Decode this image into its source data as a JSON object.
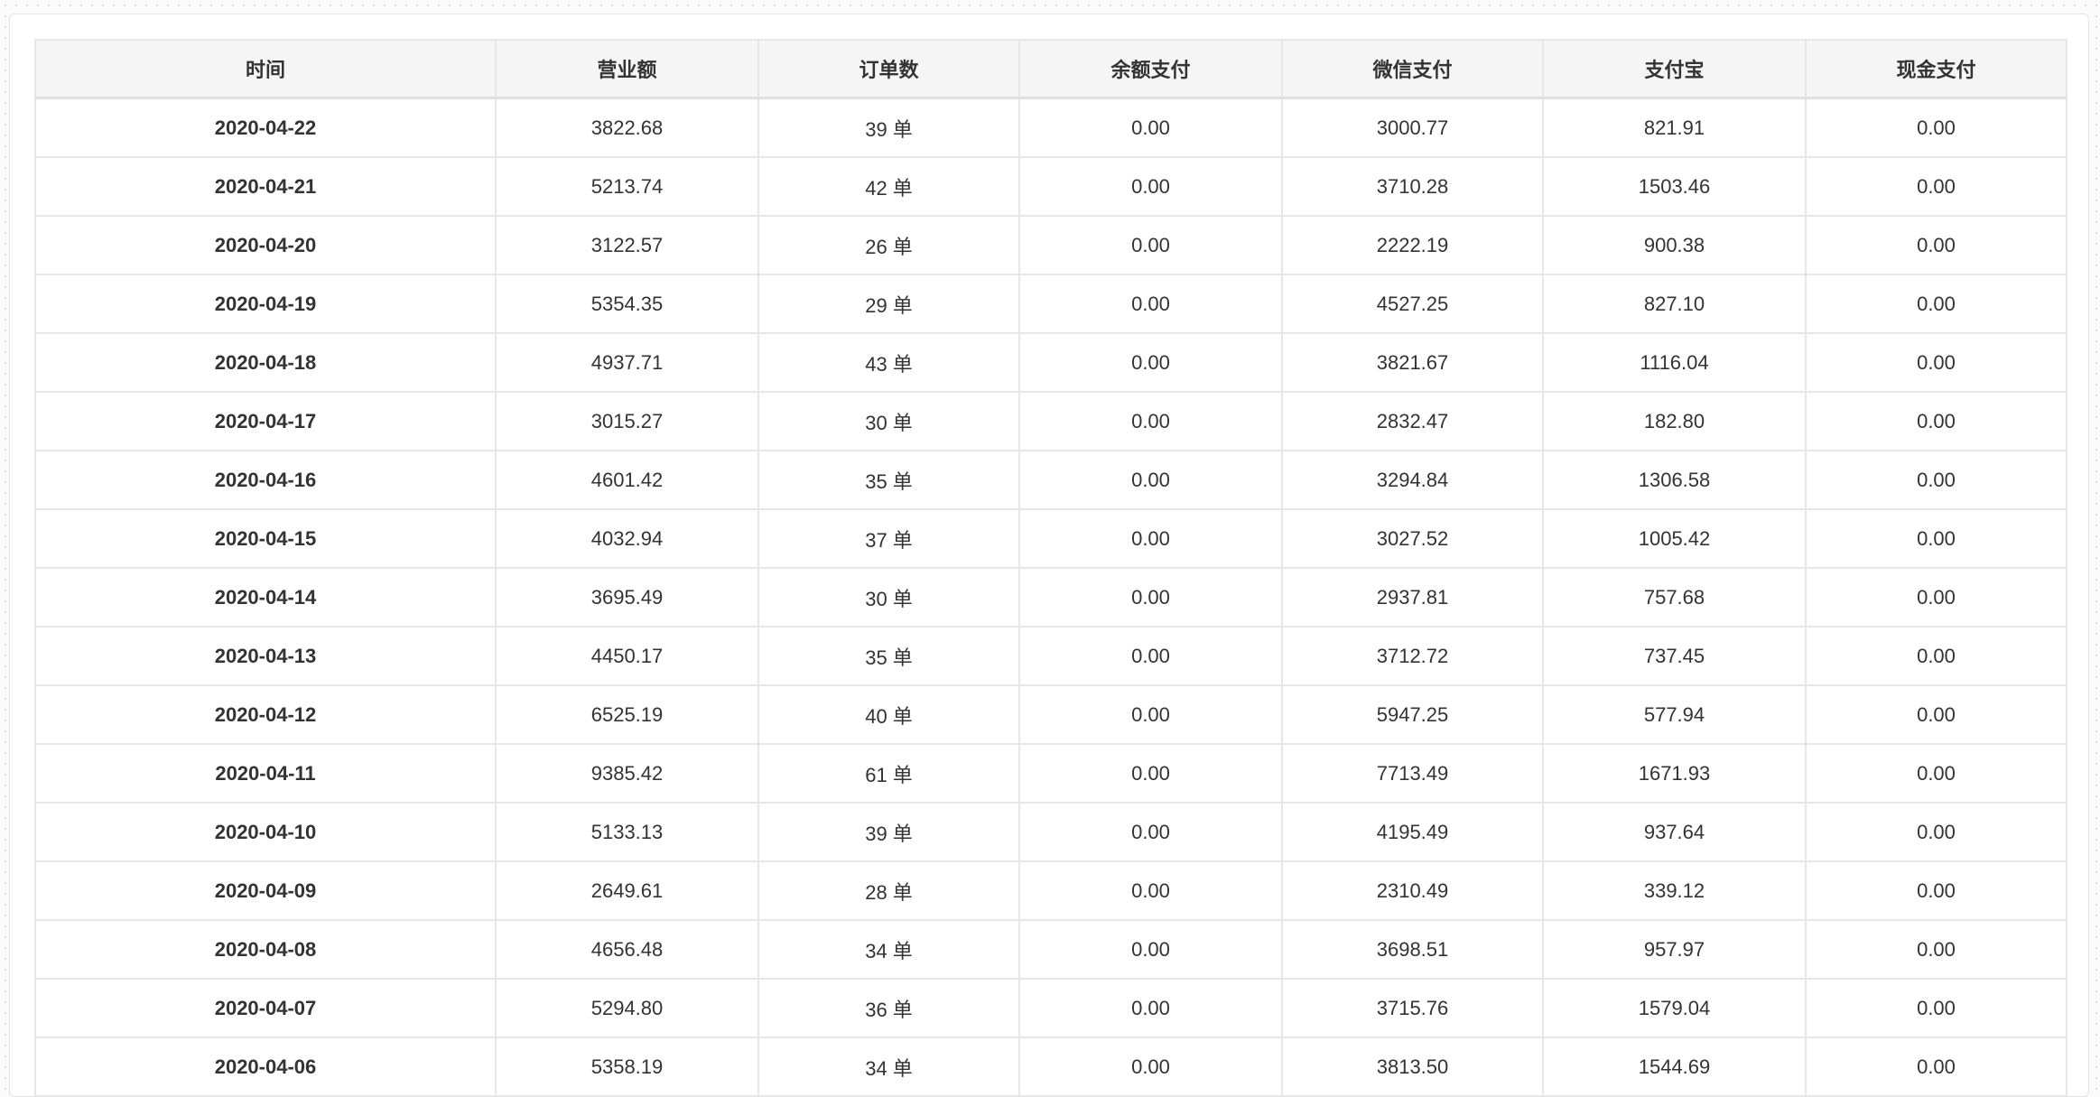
{
  "table": {
    "headers": [
      "时间",
      "营业额",
      "订单数",
      "余额支付",
      "微信支付",
      "支付宝",
      "现金支付"
    ],
    "rows": [
      [
        "2020-04-22",
        "3822.68",
        "39 单",
        "0.00",
        "3000.77",
        "821.91",
        "0.00"
      ],
      [
        "2020-04-21",
        "5213.74",
        "42 单",
        "0.00",
        "3710.28",
        "1503.46",
        "0.00"
      ],
      [
        "2020-04-20",
        "3122.57",
        "26 单",
        "0.00",
        "2222.19",
        "900.38",
        "0.00"
      ],
      [
        "2020-04-19",
        "5354.35",
        "29 单",
        "0.00",
        "4527.25",
        "827.10",
        "0.00"
      ],
      [
        "2020-04-18",
        "4937.71",
        "43 单",
        "0.00",
        "3821.67",
        "1116.04",
        "0.00"
      ],
      [
        "2020-04-17",
        "3015.27",
        "30 单",
        "0.00",
        "2832.47",
        "182.80",
        "0.00"
      ],
      [
        "2020-04-16",
        "4601.42",
        "35 单",
        "0.00",
        "3294.84",
        "1306.58",
        "0.00"
      ],
      [
        "2020-04-15",
        "4032.94",
        "37 单",
        "0.00",
        "3027.52",
        "1005.42",
        "0.00"
      ],
      [
        "2020-04-14",
        "3695.49",
        "30 单",
        "0.00",
        "2937.81",
        "757.68",
        "0.00"
      ],
      [
        "2020-04-13",
        "4450.17",
        "35 单",
        "0.00",
        "3712.72",
        "737.45",
        "0.00"
      ],
      [
        "2020-04-12",
        "6525.19",
        "40 单",
        "0.00",
        "5947.25",
        "577.94",
        "0.00"
      ],
      [
        "2020-04-11",
        "9385.42",
        "61 单",
        "0.00",
        "7713.49",
        "1671.93",
        "0.00"
      ],
      [
        "2020-04-10",
        "5133.13",
        "39 单",
        "0.00",
        "4195.49",
        "937.64",
        "0.00"
      ],
      [
        "2020-04-09",
        "2649.61",
        "28 单",
        "0.00",
        "2310.49",
        "339.12",
        "0.00"
      ],
      [
        "2020-04-08",
        "4656.48",
        "34 单",
        "0.00",
        "3698.51",
        "957.97",
        "0.00"
      ],
      [
        "2020-04-07",
        "5294.80",
        "36 单",
        "0.00",
        "3715.76",
        "1579.04",
        "0.00"
      ],
      [
        "2020-04-06",
        "5358.19",
        "34 单",
        "0.00",
        "3813.50",
        "1544.69",
        "0.00"
      ]
    ]
  }
}
